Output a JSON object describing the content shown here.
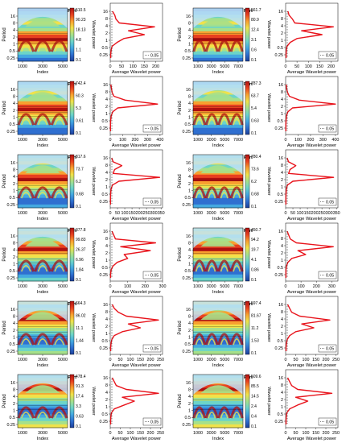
{
  "figure": {
    "colorbar_label": "Wavelet power",
    "colorbar_colors": [
      "#1c3f99",
      "#2f6fd0",
      "#43a8e0",
      "#6cd4c8",
      "#a6e08a",
      "#f0e24a",
      "#f8a030",
      "#e84020",
      "#b01010"
    ],
    "line_color": "#e8141c",
    "legend_text": "0.05"
  },
  "chart_data": [
    {
      "type": "heatmap",
      "title": "Model No. 24 - 1st Part",
      "xlabel": "Index",
      "ylabel": "Period",
      "xticks": [
        "1000",
        "3000",
        "5000"
      ],
      "yticks": [
        "16",
        "8",
        "4",
        "2",
        "1",
        "0.5",
        "0.25"
      ],
      "colorbar_ticks": [
        "510.5",
        "90.23",
        "18.13",
        "4.8",
        "1.1",
        "0.1"
      ]
    },
    {
      "type": "line",
      "title": "Model No. 24 - 1st Part",
      "xlabel": "Average Wavelet power",
      "xticks": [
        "0",
        "50",
        "100",
        "150",
        "200"
      ],
      "xlim": [
        0,
        230
      ],
      "yticks": [
        "16",
        "8",
        "4",
        "2",
        "1",
        "0.5",
        "0.25"
      ],
      "periods": [
        16,
        11.3,
        8,
        5.7,
        4,
        2.8,
        2,
        1.41,
        1,
        0.71,
        0.5,
        0.35,
        0.25
      ],
      "values": [
        10,
        20,
        25,
        40,
        195,
        80,
        150,
        60,
        30,
        8,
        4,
        2,
        2
      ]
    },
    {
      "type": "heatmap",
      "title": "Model No. 24 - 2nd Part",
      "xlabel": "Index",
      "ylabel": "Period",
      "xticks": [
        "1000",
        "3000",
        "5000",
        "7000"
      ],
      "yticks": [
        "16",
        "8",
        "4",
        "2",
        "1",
        "0.5",
        "0.25"
      ],
      "colorbar_ticks": [
        "561.7",
        "80.9",
        "12.4",
        "3.1",
        "0.6",
        "0.1"
      ]
    },
    {
      "type": "line",
      "title": "Model No. 24 - 2nd Part",
      "xlabel": "Average Wavelet power",
      "xticks": [
        "0",
        "50",
        "100",
        "150",
        "200"
      ],
      "xlim": [
        0,
        230
      ],
      "yticks": [
        "16",
        "8",
        "4",
        "2",
        "1",
        "0.5",
        "0.25"
      ],
      "periods": [
        16,
        11.3,
        8,
        5.7,
        4,
        2.8,
        2,
        1.41,
        1,
        0.71,
        0.5,
        0.35,
        0.25
      ],
      "values": [
        10,
        15,
        30,
        40,
        210,
        70,
        160,
        50,
        20,
        6,
        3,
        2,
        2
      ]
    },
    {
      "type": "heatmap",
      "title": "Model No. 25 - 1st Part",
      "xlabel": "Index",
      "ylabel": "Period",
      "xticks": [
        "1000",
        "3000",
        "5000"
      ],
      "yticks": [
        "16",
        "8",
        "4",
        "2",
        "1",
        "0.5",
        "0.25"
      ],
      "colorbar_ticks": [
        "742.4",
        "60.3",
        "5.3",
        "0.61",
        "0.1"
      ]
    },
    {
      "type": "line",
      "title": "Model No. 25 - 1st Part",
      "xlabel": "Average Wavelet power",
      "xticks": [
        "0",
        "100",
        "200",
        "300",
        "400"
      ],
      "xlim": [
        0,
        420
      ],
      "yticks": [
        "16",
        "8",
        "4",
        "2",
        "1",
        "0.5",
        "0.25"
      ],
      "periods": [
        16,
        11.3,
        8,
        5.7,
        4,
        2.8,
        2,
        1.41,
        1,
        0.71,
        0.5,
        0.35,
        0.25
      ],
      "values": [
        5,
        10,
        15,
        30,
        120,
        380,
        60,
        20,
        8,
        4,
        2,
        2,
        2
      ]
    },
    {
      "type": "heatmap",
      "title": "Model No. 25 - 2nd Part",
      "xlabel": "Index",
      "ylabel": "Period",
      "xticks": [
        "1000",
        "3000",
        "5000",
        "7000"
      ],
      "yticks": [
        "16",
        "8",
        "4",
        "2",
        "1",
        "0.5",
        "0.25"
      ],
      "colorbar_ticks": [
        "787.3",
        "63.7",
        "5.4",
        "0.63",
        "0.1"
      ]
    },
    {
      "type": "line",
      "title": "Model No. 25 - 2nd Part",
      "xlabel": "Average Wavelet power",
      "xticks": [
        "0",
        "100",
        "200",
        "300",
        "400"
      ],
      "xlim": [
        0,
        420
      ],
      "yticks": [
        "16",
        "8",
        "4",
        "2",
        "1",
        "0.5",
        "0.25"
      ],
      "periods": [
        16,
        11.3,
        8,
        5.7,
        4,
        2.8,
        2,
        1.41,
        1,
        0.71,
        0.5,
        0.35,
        0.25
      ],
      "values": [
        5,
        8,
        15,
        30,
        110,
        400,
        55,
        18,
        7,
        4,
        2,
        2,
        2
      ]
    },
    {
      "type": "heatmap",
      "title": "Model No. 26 - 1st Part",
      "xlabel": "Index",
      "ylabel": "Period",
      "xticks": [
        "1000",
        "3000",
        "5000"
      ],
      "yticks": [
        "16",
        "8",
        "4",
        "2",
        "1",
        "0.5",
        "0.25"
      ],
      "colorbar_ticks": [
        "817.6",
        "73.7",
        "6.2",
        "0.68",
        "0.1"
      ]
    },
    {
      "type": "line",
      "title": "Model No. 26 - 1st Part",
      "xlabel": "Average Wavelet power",
      "xticks": [
        "0",
        "50",
        "100",
        "150",
        "200",
        "250",
        "300",
        "350"
      ],
      "xlim": [
        0,
        360
      ],
      "yticks": [
        "16",
        "8",
        "4",
        "2",
        "1",
        "0.5",
        "0.25"
      ],
      "periods": [
        16,
        11.3,
        8,
        5.7,
        4,
        2.8,
        2,
        1.41,
        1,
        0.71,
        0.5,
        0.35,
        0.25
      ],
      "values": [
        10,
        20,
        80,
        30,
        20,
        340,
        60,
        15,
        6,
        3,
        2,
        2,
        2
      ]
    },
    {
      "type": "heatmap",
      "title": "Model No. 26 - 2nd Part",
      "xlabel": "Index",
      "ylabel": "Period",
      "xticks": [
        "1000",
        "3000",
        "5000",
        "7000"
      ],
      "yticks": [
        "16",
        "8",
        "4",
        "2",
        "1",
        "0.5",
        "0.25"
      ],
      "colorbar_ticks": [
        "780.4",
        "73.6",
        "6.2",
        "0.68",
        "0.1"
      ]
    },
    {
      "type": "line",
      "title": "Model No. 26 - 2nd Part",
      "xlabel": "Average Wavelet power",
      "xticks": [
        "0",
        "50",
        "100",
        "150",
        "200",
        "250",
        "300",
        "350"
      ],
      "xlim": [
        0,
        360
      ],
      "yticks": [
        "16",
        "8",
        "4",
        "2",
        "1",
        "0.5",
        "0.25"
      ],
      "periods": [
        16,
        11.3,
        8,
        5.7,
        4,
        2.8,
        2,
        1.41,
        1,
        0.71,
        0.5,
        0.35,
        0.25
      ],
      "values": [
        10,
        20,
        70,
        30,
        20,
        330,
        50,
        12,
        5,
        3,
        2,
        2,
        2
      ]
    },
    {
      "type": "heatmap",
      "title": "Model No. 27 - 1st Part",
      "xlabel": "Index",
      "ylabel": "Period",
      "xticks": [
        "1000",
        "3000",
        "5000"
      ],
      "yticks": [
        "16",
        "8",
        "4",
        "2",
        "1",
        "0.5",
        "0.25"
      ],
      "colorbar_ticks": [
        "377.8",
        "99.83",
        "26.37",
        "6.96",
        "1.84",
        "0.1"
      ]
    },
    {
      "type": "line",
      "title": "Model No. 27 - 1st Part",
      "xlabel": "Average Wavelet power",
      "xticks": [
        "0",
        "100",
        "200",
        "300"
      ],
      "xlim": [
        0,
        300
      ],
      "yticks": [
        "16",
        "8",
        "4",
        "2",
        "1",
        "0.5",
        "0.25"
      ],
      "periods": [
        16,
        11.3,
        8,
        5.7,
        4,
        2.8,
        2,
        1.41,
        1,
        0.71,
        0.5,
        0.35,
        0.25
      ],
      "values": [
        10,
        20,
        30,
        260,
        60,
        230,
        80,
        100,
        40,
        15,
        5,
        2,
        2
      ]
    },
    {
      "type": "heatmap",
      "title": "Model No. 27 - 2nd Part",
      "xlabel": "Index",
      "ylabel": "Period",
      "xticks": [
        "1000",
        "3000",
        "5000",
        "7000"
      ],
      "yticks": [
        "16",
        "8",
        "4",
        "2",
        "1",
        "0.5",
        "0.25"
      ],
      "colorbar_ticks": [
        "450.7",
        "94.2",
        "19.7",
        "4.1",
        "0.86",
        "0.1"
      ]
    },
    {
      "type": "line",
      "title": "Model No. 27 - 2nd Part",
      "xlabel": "Average Wavelet power",
      "xticks": [
        "0",
        "100",
        "200",
        "300"
      ],
      "xlim": [
        0,
        340
      ],
      "yticks": [
        "16",
        "8",
        "4",
        "2",
        "1",
        "0.5",
        "0.25"
      ],
      "periods": [
        16,
        11.3,
        8,
        5.7,
        4,
        2.8,
        2,
        1.41,
        1,
        0.71,
        0.5,
        0.35,
        0.25
      ],
      "values": [
        10,
        20,
        30,
        70,
        310,
        80,
        130,
        40,
        15,
        5,
        2,
        2,
        2
      ]
    },
    {
      "type": "heatmap",
      "title": "Model No. 28 - 1st Part",
      "xlabel": "Index",
      "ylabel": "Period",
      "xticks": [
        "1000",
        "3000",
        "5000"
      ],
      "yticks": [
        "16",
        "8",
        "4",
        "2",
        "1",
        "0.5",
        "0.25"
      ],
      "colorbar_ticks": [
        "664.3",
        "86.02",
        "11.1",
        "1.44",
        "0.1"
      ]
    },
    {
      "type": "line",
      "title": "Model No. 28 - 1st Part",
      "xlabel": "Average Wavelet power",
      "xticks": [
        "0",
        "50",
        "100",
        "150",
        "200",
        "250"
      ],
      "xlim": [
        0,
        260
      ],
      "yticks": [
        "16",
        "8",
        "4",
        "2",
        "1",
        "0.5",
        "0.25"
      ],
      "periods": [
        16,
        11.3,
        8,
        5.7,
        4,
        2.8,
        2,
        1.41,
        1,
        0.71,
        0.5,
        0.35,
        0.25
      ],
      "values": [
        10,
        20,
        40,
        80,
        240,
        90,
        150,
        60,
        20,
        8,
        4,
        2,
        2
      ]
    },
    {
      "type": "heatmap",
      "title": "Model No. 28 - 2nd Part",
      "xlabel": "Index",
      "ylabel": "Period",
      "xticks": [
        "1000",
        "3000",
        "5000",
        "7000"
      ],
      "yticks": [
        "16",
        "8",
        "4",
        "2",
        "1",
        "0.5",
        "0.25"
      ],
      "colorbar_ticks": [
        "597.4",
        "81.67",
        "11.2",
        "1.53",
        "0.1"
      ]
    },
    {
      "type": "line",
      "title": "Model No. 28 - 2nd Part",
      "xlabel": "Average Wavelet power",
      "xticks": [
        "0",
        "50",
        "100",
        "150",
        "200",
        "250"
      ],
      "xlim": [
        0,
        260
      ],
      "yticks": [
        "16",
        "8",
        "4",
        "2",
        "1",
        "0.5",
        "0.25"
      ],
      "periods": [
        16,
        11.3,
        8,
        5.7,
        4,
        2.8,
        2,
        1.41,
        1,
        0.71,
        0.5,
        0.35,
        0.25
      ],
      "values": [
        10,
        20,
        30,
        70,
        220,
        80,
        140,
        50,
        20,
        8,
        4,
        2,
        2
      ]
    },
    {
      "type": "heatmap",
      "title": "Model No. 29 - 1st Part",
      "xlabel": "Index",
      "ylabel": "Period",
      "xticks": [
        "1000",
        "3000",
        "5000"
      ],
      "yticks": [
        "16",
        "8",
        "4",
        "2",
        "1",
        "0.5",
        "0.25"
      ],
      "colorbar_ticks": [
        "478.4",
        "91.3",
        "17.4",
        "3.3",
        "0.63",
        "0.1"
      ]
    },
    {
      "type": "line",
      "title": "Model No. 29 - 1st Part",
      "xlabel": "Average Wavelet power",
      "xticks": [
        "0",
        "50",
        "100",
        "150",
        "200",
        "250"
      ],
      "xlim": [
        0,
        260
      ],
      "yticks": [
        "16",
        "8",
        "4",
        "2",
        "1",
        "0.5",
        "0.25"
      ],
      "periods": [
        16,
        11.3,
        8,
        5.7,
        4,
        2.8,
        2,
        1.41,
        1,
        0.71,
        0.5,
        0.35,
        0.25
      ],
      "values": [
        10,
        20,
        30,
        80,
        240,
        60,
        120,
        70,
        20,
        6,
        3,
        2,
        2
      ]
    },
    {
      "type": "heatmap",
      "title": "Model No. 29 - 2nd Part",
      "xlabel": "Index",
      "ylabel": "Period",
      "xticks": [
        "1000",
        "3000",
        "5000",
        "7000"
      ],
      "yticks": [
        "16",
        "8",
        "4",
        "2",
        "1",
        "0.5",
        "0.25"
      ],
      "colorbar_ticks": [
        "509.6",
        "85.5",
        "14.5",
        "2.4",
        "0.4",
        "0.1"
      ]
    },
    {
      "type": "line",
      "title": "Model No. 29 - 2nd Part",
      "xlabel": "Average Wavelet power",
      "xticks": [
        "0",
        "50",
        "100",
        "150",
        "200",
        "250"
      ],
      "xlim": [
        0,
        260
      ],
      "yticks": [
        "16",
        "8",
        "4",
        "2",
        "1",
        "0.5",
        "0.25"
      ],
      "periods": [
        16,
        11.3,
        8,
        5.7,
        4,
        2.8,
        2,
        1.41,
        1,
        0.71,
        0.5,
        0.35,
        0.25
      ],
      "values": [
        10,
        20,
        30,
        60,
        230,
        50,
        110,
        60,
        20,
        6,
        3,
        2,
        2
      ]
    }
  ]
}
